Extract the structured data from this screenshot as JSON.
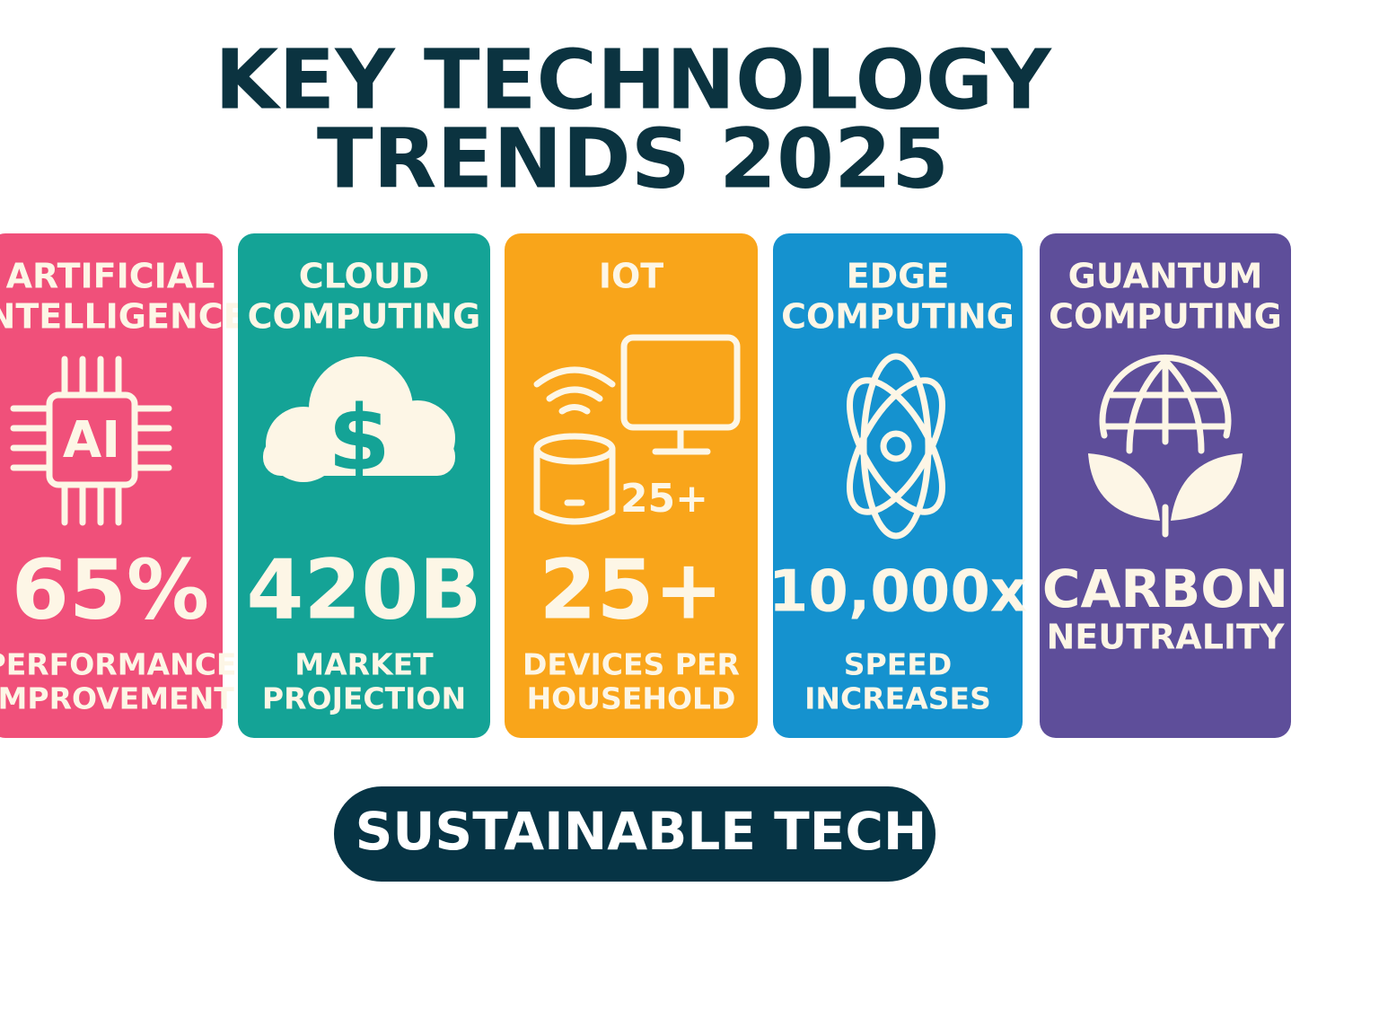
{
  "title": [
    "KEY TECHNOLOGY",
    "TRENDS 2025"
  ],
  "cards": [
    {
      "title": [
        "ARTIFICIAL",
        "INTELLIGENCE"
      ],
      "icon_text": "AI",
      "stat": "65%",
      "label": [
        "PERFORMANCE",
        "IMPROVEMENT"
      ]
    },
    {
      "title": [
        "CLOUD",
        "COMPUTING"
      ],
      "stat": "420B",
      "label": [
        "MARKET",
        "PROJECTION"
      ]
    },
    {
      "title": [
        "IOT"
      ],
      "icon_text": "25+",
      "stat": "25+",
      "label": [
        "DEVICES PER",
        "HOUSEHOLD"
      ]
    },
    {
      "title": [
        "EDGE",
        "COMPUTING"
      ],
      "stat": "10,000x",
      "label": [
        "SPEED",
        "INCREASES"
      ]
    },
    {
      "title": [
        "GUANTUM",
        "COMPUTING"
      ],
      "stat": "CARBON",
      "label": [
        "NEUTRALITY"
      ]
    }
  ],
  "button": "SUSTAINABLE TECH"
}
